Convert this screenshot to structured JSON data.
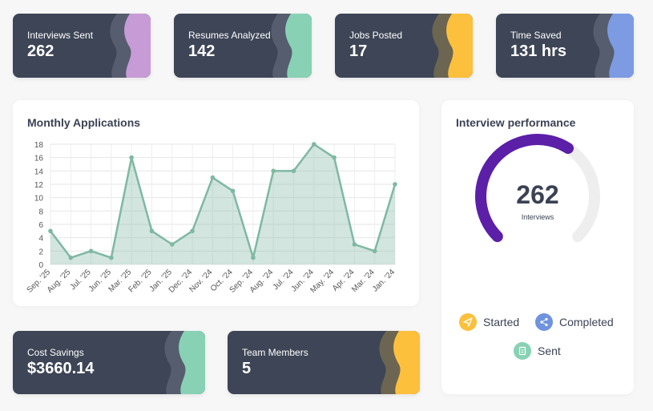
{
  "stats_top": [
    {
      "label": "Interviews Sent",
      "value": "262",
      "accent": "#c79bd6"
    },
    {
      "label": "Resumes Analyzed",
      "value": "142",
      "accent": "#88d1b5"
    },
    {
      "label": "Jobs Posted",
      "value": "17",
      "accent": "#fcc03d"
    },
    {
      "label": "Time Saved",
      "value": "131 hrs",
      "accent": "#7c9be3"
    }
  ],
  "stats_bottom": [
    {
      "label": "Cost Savings",
      "value": "$3660.14",
      "accent": "#88d1b5"
    },
    {
      "label": "Team Members",
      "value": "5",
      "accent": "#fcc03d"
    }
  ],
  "monthly": {
    "title": "Monthly Applications",
    "chart_data": {
      "type": "area",
      "categories": [
        "Sep. '25",
        "Aug. '25",
        "Jul. '25",
        "Jun. '25",
        "Mar. '25",
        "Feb. '25",
        "Jan. '25",
        "Dec. '24",
        "Nov. '24",
        "Oct. '24",
        "Sep. '24",
        "Aug. '24",
        "Jul. '24",
        "Jun. '24",
        "May. '24",
        "Apr. '24",
        "Mar. '24",
        "Jan. '24"
      ],
      "series": [
        {
          "values": [
            5,
            1,
            2,
            1,
            16,
            5,
            3,
            5,
            13,
            11,
            1,
            14,
            14,
            18,
            16,
            3,
            2,
            12
          ]
        }
      ],
      "ylim": [
        0,
        18
      ],
      "yticks": [
        0,
        2,
        4,
        6,
        8,
        10,
        12,
        14,
        16,
        18
      ],
      "grid": true,
      "color": "#7fb8a3"
    }
  },
  "performance": {
    "title": "Interview performance",
    "value": "262",
    "unit": "Interviews",
    "progress_fraction": 0.62,
    "arc_color": "#5b1fa8",
    "track_color": "#eeeeee",
    "legend": [
      {
        "label": "Started",
        "color": "#fcc03d",
        "icon": "send-icon"
      },
      {
        "label": "Completed",
        "color": "#6f93de",
        "icon": "share-icon"
      },
      {
        "label": "Sent",
        "color": "#88d1b5",
        "icon": "document-icon"
      }
    ]
  }
}
